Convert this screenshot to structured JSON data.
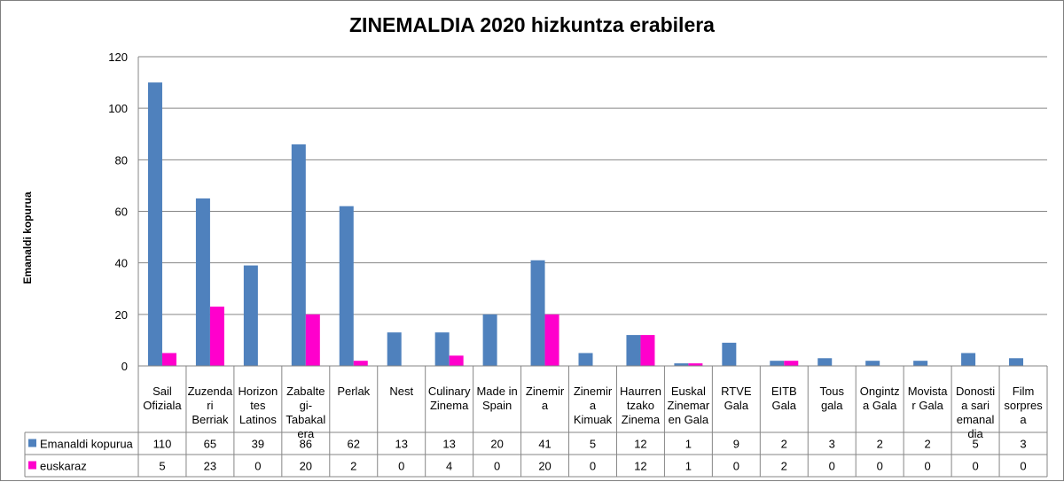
{
  "chart_data": {
    "type": "bar",
    "title": "ZINEMALDIA 2020 hizkuntza erabilera",
    "ylabel": "Emanaldi kopurua",
    "xlabel": "",
    "ylim": [
      0,
      120
    ],
    "yticks": [
      0,
      20,
      40,
      60,
      80,
      100,
      120
    ],
    "grid": true,
    "legend": "data-table-left",
    "categories": [
      [
        "Sail",
        "Ofiziala"
      ],
      [
        "Zuzenda",
        "ri",
        "Berriak"
      ],
      [
        "Horizon",
        "tes",
        "Latinos"
      ],
      [
        "Zabalte",
        "gi-",
        "Tabakal",
        "era"
      ],
      [
        "Perlak"
      ],
      [
        "Nest"
      ],
      [
        "Culinary",
        "Zinema"
      ],
      [
        "Made in",
        "Spain"
      ],
      [
        "Zinemir",
        "a"
      ],
      [
        "Zinemir",
        "a",
        "Kimuak"
      ],
      [
        "Haurren",
        "tzako",
        "Zinema"
      ],
      [
        "Euskal",
        "Zinemar",
        "en Gala"
      ],
      [
        "RTVE",
        "Gala"
      ],
      [
        "EITB",
        "Gala"
      ],
      [
        "Tous",
        "gala"
      ],
      [
        "Ongintz",
        "a Gala"
      ],
      [
        "Movista",
        "r Gala"
      ],
      [
        "Donosti",
        "a sari",
        "emanal",
        "dia"
      ],
      [
        "Film",
        "sorpres",
        "a"
      ]
    ],
    "series": [
      {
        "name": "Emanaldi kopurua",
        "color": "#4f81bd",
        "values": [
          110,
          65,
          39,
          86,
          62,
          13,
          13,
          20,
          41,
          5,
          12,
          1,
          9,
          2,
          3,
          2,
          2,
          5,
          3
        ]
      },
      {
        "name": "euskaraz",
        "color": "#ff00cc",
        "values": [
          5,
          23,
          0,
          20,
          2,
          0,
          4,
          0,
          20,
          0,
          12,
          1,
          0,
          2,
          0,
          0,
          0,
          0,
          0
        ]
      }
    ]
  }
}
